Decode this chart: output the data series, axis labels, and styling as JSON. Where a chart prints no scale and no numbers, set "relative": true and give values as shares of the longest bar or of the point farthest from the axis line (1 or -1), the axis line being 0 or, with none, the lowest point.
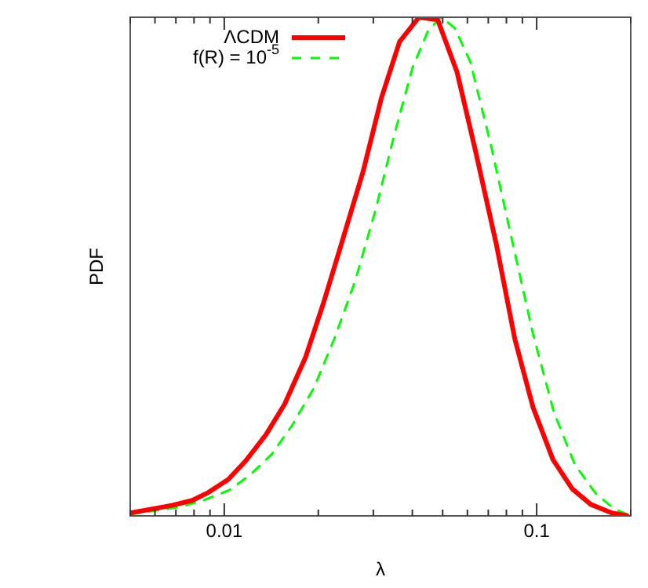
{
  "chart_data": {
    "type": "line",
    "xlabel": "λ",
    "ylabel": "PDF",
    "relative": true,
    "log": "x",
    "legend": "top left",
    "marker": "none",
    "xlim": [
      0.005,
      0.2
    ],
    "xticks": [
      {
        "value": 0.005,
        "label": null
      },
      {
        "value": 0.006,
        "label": null
      },
      {
        "value": 0.007,
        "label": null
      },
      {
        "value": 0.008,
        "label": null
      },
      {
        "value": 0.009,
        "label": null
      },
      0.01,
      {
        "value": 0.02,
        "label": null
      },
      {
        "value": 0.03,
        "label": null
      },
      {
        "value": 0.04,
        "label": null
      },
      {
        "value": 0.05,
        "label": null
      },
      {
        "value": 0.06,
        "label": null
      },
      {
        "value": 0.07,
        "label": null
      },
      {
        "value": 0.08,
        "label": null
      },
      {
        "value": 0.09,
        "label": null
      },
      0.1,
      {
        "value": 0.2,
        "label": null
      }
    ],
    "series": [
      {
        "name": "ΛCDM",
        "color": "#ff0000",
        "line_style": "solid",
        "x": [
          0.005,
          0.0068,
          0.0079,
          0.0089,
          0.0103,
          0.0117,
          0.0136,
          0.0156,
          0.0182,
          0.0208,
          0.0238,
          0.0278,
          0.0318,
          0.0364,
          0.042,
          0.0482,
          0.0556,
          0.0637,
          0.0743,
          0.0851,
          0.0973,
          0.1127,
          0.13,
          0.149,
          0.174,
          0.195
        ],
        "values": [
          0.006,
          0.021,
          0.031,
          0.047,
          0.073,
          0.11,
          0.163,
          0.224,
          0.318,
          0.428,
          0.549,
          0.69,
          0.837,
          0.951,
          1,
          0.995,
          0.89,
          0.732,
          0.544,
          0.355,
          0.218,
          0.113,
          0.054,
          0.023,
          0.006,
          0
        ]
      },
      {
        "name": "f(R) = 10$^{-5}$",
        "color": "#00ff00",
        "line_style": "dashed",
        "x": [
          0.005,
          0.00707,
          0.00857,
          0.0104,
          0.0121,
          0.0142,
          0.0165,
          0.0193,
          0.0225,
          0.0262,
          0.0306,
          0.035,
          0.0401,
          0.045,
          0.0495,
          0.0546,
          0.0613,
          0.0714,
          0.0833,
          0.0973,
          0.1135,
          0.1325,
          0.1545,
          0.177,
          0.195
        ],
        "values": [
          0.003,
          0.017,
          0.031,
          0.052,
          0.082,
          0.124,
          0.182,
          0.255,
          0.355,
          0.47,
          0.617,
          0.764,
          0.9,
          0.974,
          1,
          0.979,
          0.911,
          0.743,
          0.554,
          0.365,
          0.208,
          0.103,
          0.045,
          0.014,
          0.003
        ]
      }
    ]
  }
}
